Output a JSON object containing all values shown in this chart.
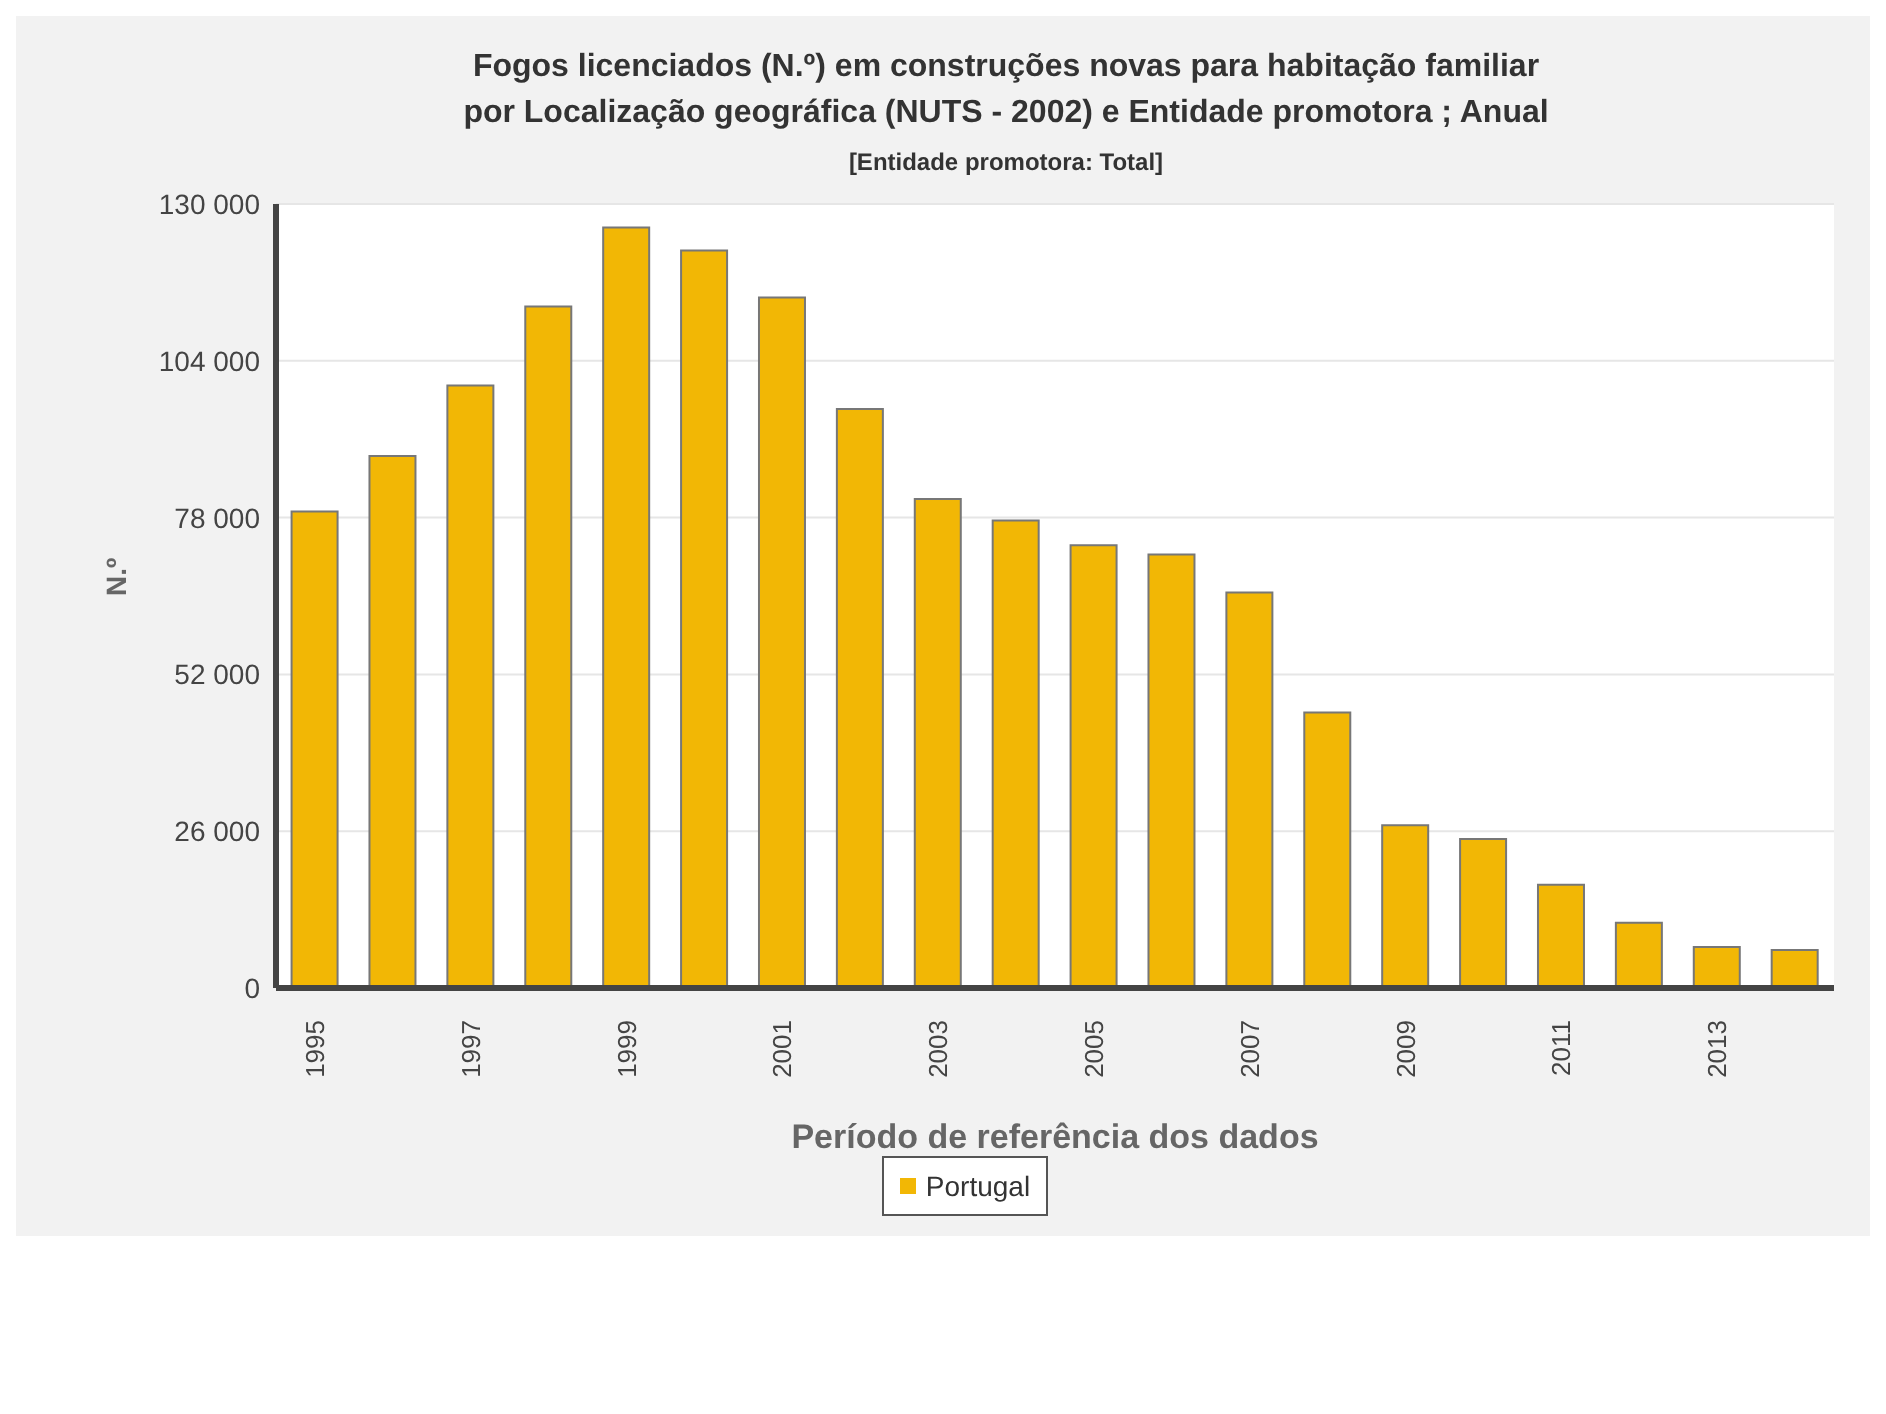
{
  "chart_data": {
    "type": "bar",
    "title": "Fogos licenciados (N.º) em construções novas para habitação familiar por Localização geográfica (NUTS - 2002) e Entidade promotora ; Anual",
    "subtitle": "[Entidade promotora: Total]",
    "xlabel": "Período de referência dos dados",
    "ylabel": "N.º",
    "categories": [
      "1995",
      null,
      "1997",
      null,
      "1999",
      null,
      "2001",
      null,
      "2003",
      null,
      "2005",
      null,
      "2007",
      null,
      "2009",
      null,
      "2011",
      null,
      "2013",
      null
    ],
    "series": [
      {
        "name": "Portugal",
        "color": "#f2b705",
        "values": [
          79000,
          88200,
          99900,
          113000,
          126100,
          122300,
          114500,
          96000,
          81100,
          77500,
          73400,
          71900,
          65600,
          45700,
          27000,
          24700,
          17100,
          10800,
          6800,
          6300
        ]
      }
    ],
    "ylim": [
      0,
      130000
    ],
    "yticks": [
      {
        "value": 0,
        "label": "0"
      },
      {
        "value": 26000,
        "label": "26 000"
      },
      {
        "value": 52000,
        "label": "52 000"
      },
      {
        "value": 78000,
        "label": "78 000"
      },
      {
        "value": 104000,
        "label": "104 000"
      },
      {
        "value": 130000,
        "label": "130 000"
      }
    ],
    "grid": "y",
    "legend": "bottom"
  }
}
